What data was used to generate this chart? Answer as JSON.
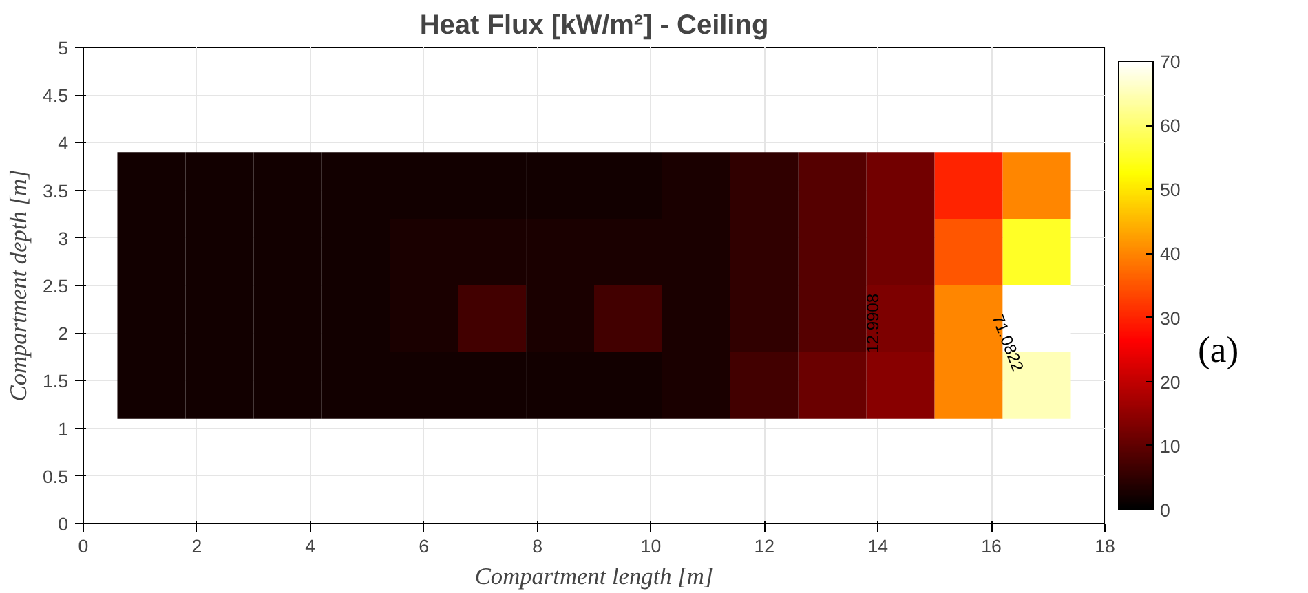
{
  "chart_data": {
    "type": "heatmap",
    "title": "Heat Flux [kW/m²] - Ceiling",
    "xlabel": "Compartment length [m]",
    "ylabel": "Compartment depth [m]",
    "x": [
      1.2,
      2.4,
      3.6,
      4.8,
      6.0,
      7.2,
      8.4,
      9.6,
      10.8,
      12.0,
      13.2,
      14.4,
      15.6,
      16.8
    ],
    "y": [
      3.55,
      2.85,
      2.15,
      1.45
    ],
    "cells": [
      [
        2,
        2,
        2,
        2,
        2,
        2,
        2,
        2,
        3,
        5,
        9,
        12,
        30,
        40
      ],
      [
        2,
        2,
        2,
        2,
        3,
        3,
        3,
        3,
        3,
        5,
        9,
        12,
        35,
        55
      ],
      [
        2,
        2,
        2,
        2,
        3,
        7,
        3,
        7,
        3,
        5,
        9,
        13,
        40,
        70
      ],
      [
        2,
        2,
        2,
        2,
        2,
        2,
        2,
        2,
        3,
        7,
        11,
        14,
        40,
        65
      ]
    ],
    "xlim": [
      0,
      18
    ],
    "xticks": [
      0,
      2,
      4,
      6,
      8,
      10,
      12,
      14,
      16,
      18
    ],
    "ylim": [
      0,
      5
    ],
    "yticks": [
      0,
      0.5,
      1,
      1.5,
      2,
      2.5,
      3,
      3.5,
      4,
      4.5,
      5
    ],
    "clim": [
      0,
      70
    ],
    "cticks": [
      0,
      10,
      20,
      30,
      40,
      50,
      60,
      70
    ],
    "grid": true,
    "annotations": [
      "12.9908",
      "71.0822",
      "(a)"
    ]
  }
}
